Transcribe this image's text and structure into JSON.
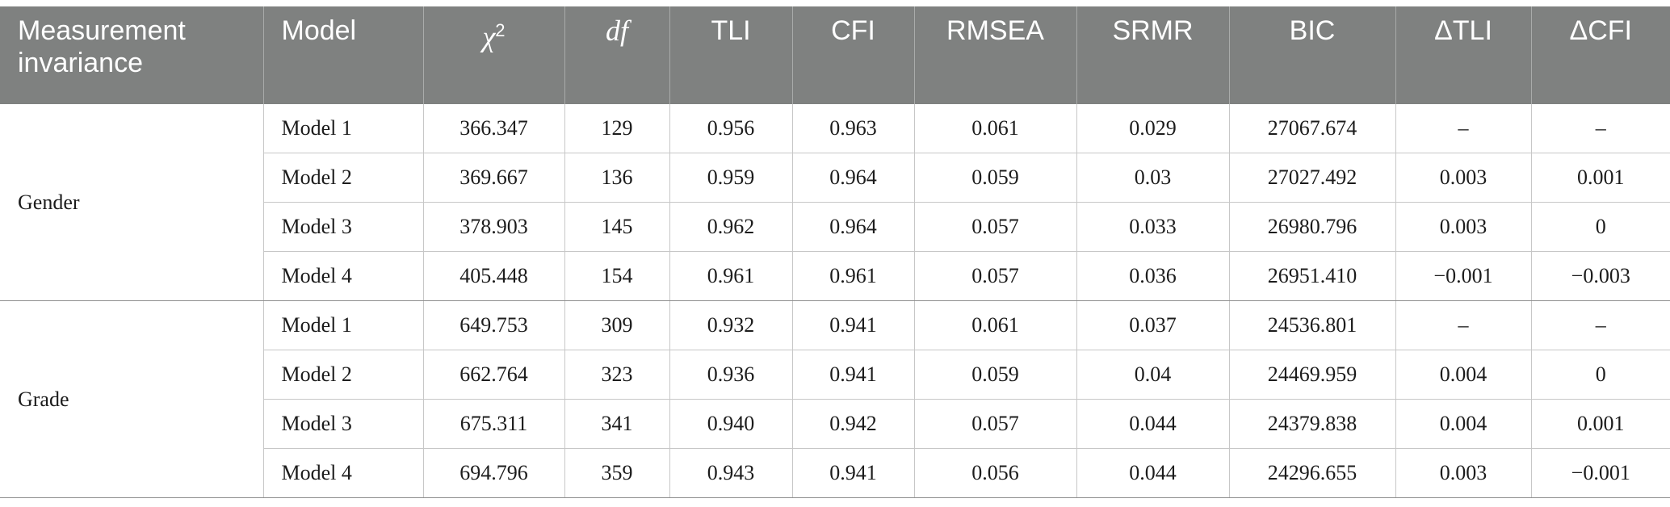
{
  "headers": [
    {
      "label": "Measurement invariance"
    },
    {
      "label": "Model"
    },
    {
      "label": "χ",
      "sup": "2"
    },
    {
      "label": "df"
    },
    {
      "label": "TLI"
    },
    {
      "label": "CFI"
    },
    {
      "label": "RMSEA"
    },
    {
      "label": "SRMR"
    },
    {
      "label": "BIC"
    },
    {
      "label": "ΔTLI"
    },
    {
      "label": "ΔCFI"
    }
  ],
  "groups": [
    {
      "label": "Gender",
      "rows": [
        [
          "Model 1",
          "366.347",
          "129",
          "0.956",
          "0.963",
          "0.061",
          "0.029",
          "27067.674",
          "–",
          "–"
        ],
        [
          "Model 2",
          "369.667",
          "136",
          "0.959",
          "0.964",
          "0.059",
          "0.03",
          "27027.492",
          "0.003",
          "0.001"
        ],
        [
          "Model 3",
          "378.903",
          "145",
          "0.962",
          "0.964",
          "0.057",
          "0.033",
          "26980.796",
          "0.003",
          "0"
        ],
        [
          "Model 4",
          "405.448",
          "154",
          "0.961",
          "0.961",
          "0.057",
          "0.036",
          "26951.410",
          "−0.001",
          "−0.003"
        ]
      ]
    },
    {
      "label": "Grade",
      "rows": [
        [
          "Model 1",
          "649.753",
          "309",
          "0.932",
          "0.941",
          "0.061",
          "0.037",
          "24536.801",
          "–",
          "–"
        ],
        [
          "Model 2",
          "662.764",
          "323",
          "0.936",
          "0.941",
          "0.059",
          "0.04",
          "24469.959",
          "0.004",
          "0"
        ],
        [
          "Model 3",
          "675.311",
          "341",
          "0.940",
          "0.942",
          "0.057",
          "0.044",
          "24379.838",
          "0.004",
          "0.001"
        ],
        [
          "Model 4",
          "694.796",
          "359",
          "0.943",
          "0.941",
          "0.056",
          "0.044",
          "24296.655",
          "0.003",
          "−0.001"
        ]
      ]
    }
  ]
}
